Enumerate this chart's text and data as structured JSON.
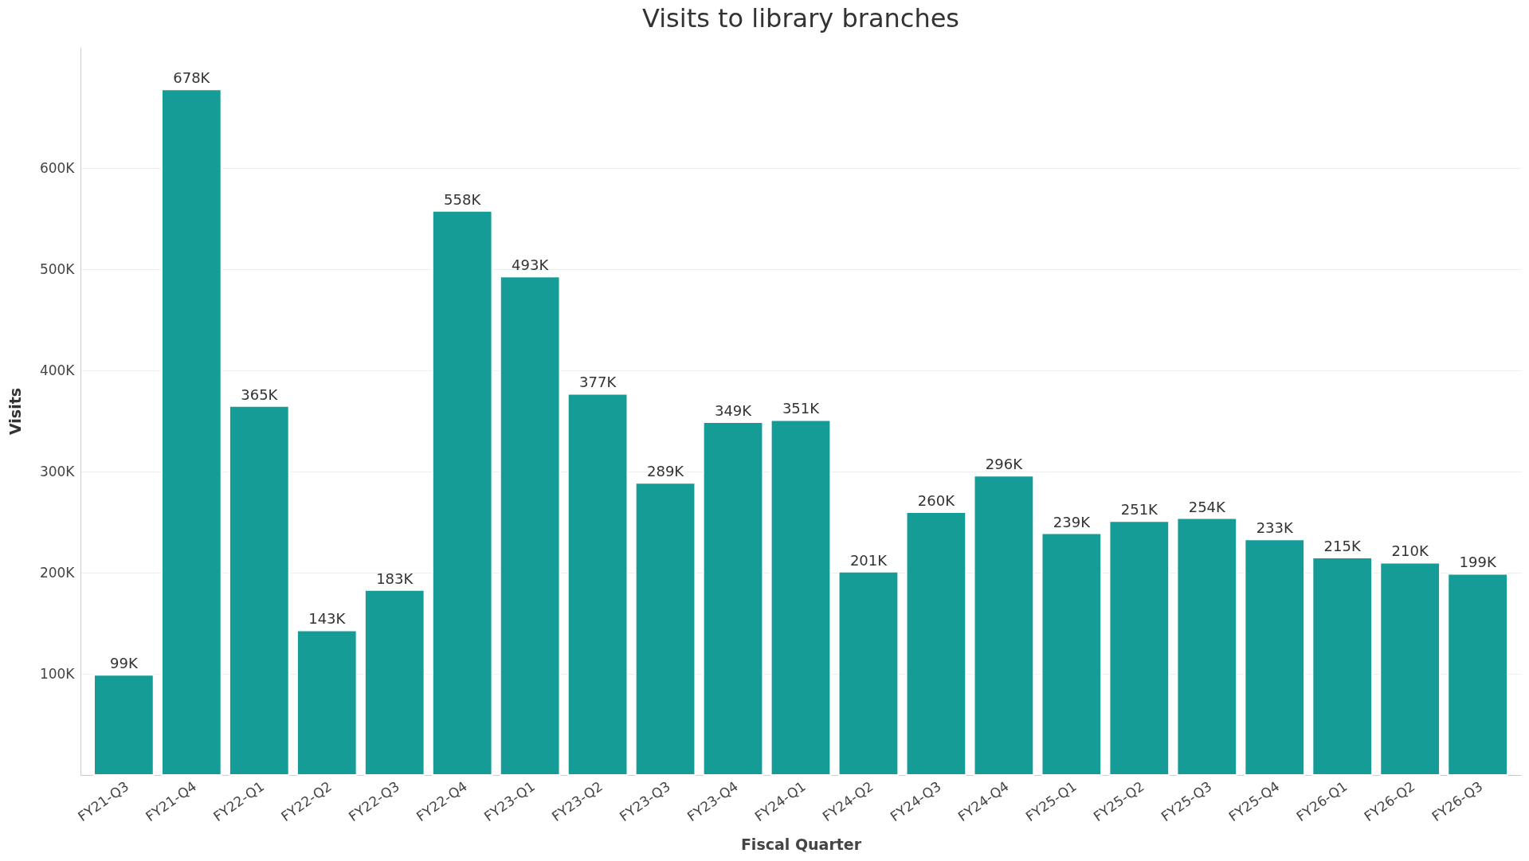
{
  "chart_data": {
    "type": "bar",
    "title": "Visits to library branches",
    "xlabel": "Fiscal Quarter",
    "ylabel": "Visits",
    "categories": [
      "FY21-Q3",
      "FY21-Q4",
      "FY22-Q1",
      "FY22-Q2",
      "FY22-Q3",
      "FY22-Q4",
      "FY23-Q1",
      "FY23-Q2",
      "FY23-Q3",
      "FY23-Q4",
      "FY24-Q1",
      "FY24-Q2",
      "FY24-Q3",
      "FY24-Q4",
      "FY25-Q1",
      "FY25-Q2",
      "FY25-Q3",
      "FY25-Q4",
      "FY26-Q1",
      "FY26-Q2",
      "FY26-Q3"
    ],
    "values": [
      99000,
      678000,
      365000,
      143000,
      183000,
      558000,
      493000,
      377000,
      289000,
      349000,
      351000,
      201000,
      260000,
      296000,
      239000,
      251000,
      254000,
      233000,
      215000,
      210000,
      199000
    ],
    "value_labels": [
      "99K",
      "678K",
      "365K",
      "143K",
      "183K",
      "558K",
      "493K",
      "377K",
      "289K",
      "349K",
      "351K",
      "201K",
      "260K",
      "296K",
      "239K",
      "251K",
      "254K",
      "233K",
      "215K",
      "210K",
      "199K"
    ],
    "color": "#169c97",
    "ylim": [
      0,
      720000
    ],
    "yticks": [
      {
        "value": 100000,
        "label": "100K"
      },
      {
        "value": 200000,
        "label": "200K"
      },
      {
        "value": 300000,
        "label": "300K"
      },
      {
        "value": 400000,
        "label": "400K"
      },
      {
        "value": 500000,
        "label": "500K"
      },
      {
        "value": 600000,
        "label": "600K"
      }
    ],
    "grid": "y"
  }
}
